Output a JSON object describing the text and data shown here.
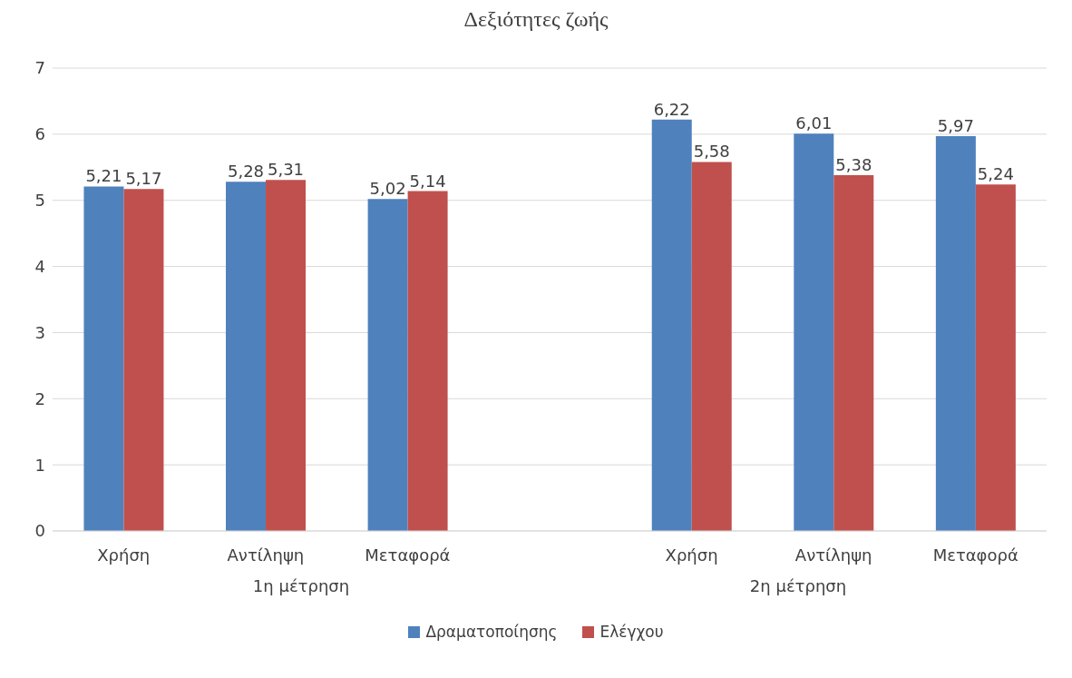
{
  "chart_data": {
    "type": "bar",
    "title": "Δεξιότητες ζωής",
    "categories": [
      "Χρήση",
      "Αντίληψη",
      "Μεταφορά",
      null,
      "Χρήση",
      "Αντίληψη",
      "Μεταφορά"
    ],
    "series": [
      {
        "name": "Δραματοποίησης",
        "color": "#4f81bd",
        "values": [
          5.21,
          5.28,
          5.02,
          null,
          6.22,
          6.01,
          5.97
        ],
        "value_labels": [
          "5,21",
          "5,28",
          "5,02",
          null,
          "6,22",
          "6,01",
          "5,97"
        ]
      },
      {
        "name": "Ελέγχου",
        "color": "#c0504d",
        "values": [
          5.17,
          5.31,
          5.14,
          null,
          5.58,
          5.38,
          5.24
        ],
        "value_labels": [
          "5,17",
          "5,31",
          "5,14",
          null,
          "5,58",
          "5,38",
          "5,24"
        ]
      }
    ],
    "annotations": [
      "1η μέτρηση",
      "2η μέτρηση"
    ],
    "ylim": [
      0,
      7
    ],
    "yticks": [
      0,
      1,
      2,
      3,
      4,
      5,
      6,
      7
    ],
    "grid": "y",
    "legend": "bottom"
  }
}
